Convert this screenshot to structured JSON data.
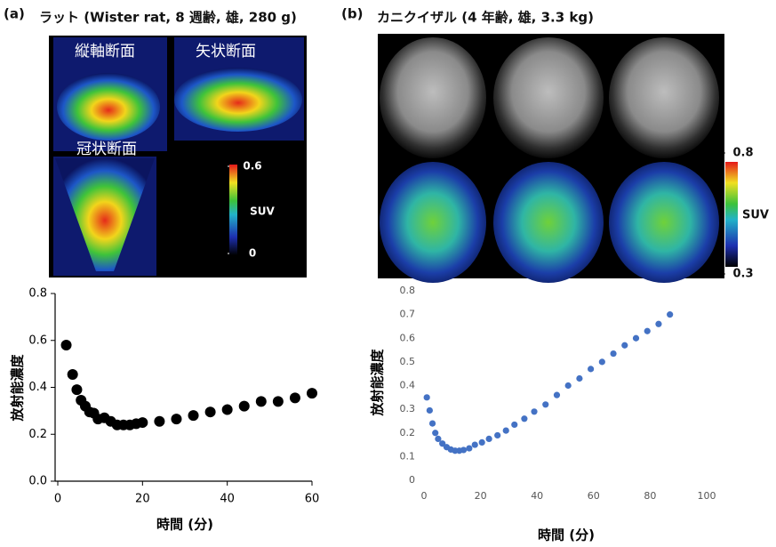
{
  "panels": [
    {
      "label": "(a)",
      "title": "ラット (Wister rat, 8 週齢, 雄, 280 g)",
      "views": [
        "縦軸断面",
        "矢状断面",
        "冠状断面"
      ],
      "colorbar": {
        "label": "SUV",
        "ticks": [
          0.6,
          0
        ]
      }
    },
    {
      "label": "(b)",
      "title": "カニクイザル (4 年齢, 雄, 3.3 kg)",
      "colorbar": {
        "label": "SUV",
        "ticks": [
          0.8,
          0.3
        ]
      }
    }
  ],
  "chart_data": [
    {
      "type": "scatter",
      "x_label": "時間 (分)",
      "y_label": "放射能濃度",
      "x": [
        2,
        3.5,
        4.5,
        5.5,
        6.5,
        7.5,
        8.5,
        9.5,
        11,
        12.5,
        14,
        15.5,
        17,
        18.5,
        20,
        24,
        28,
        32,
        36,
        40,
        44,
        48,
        52,
        56,
        60
      ],
      "values": [
        0.58,
        0.455,
        0.39,
        0.345,
        0.32,
        0.295,
        0.29,
        0.265,
        0.27,
        0.255,
        0.24,
        0.24,
        0.24,
        0.245,
        0.25,
        0.255,
        0.265,
        0.28,
        0.295,
        0.305,
        0.32,
        0.34,
        0.34,
        0.355,
        0.375
      ],
      "color": "#000000",
      "xlim": [
        0,
        60
      ],
      "xticks": [
        0,
        20,
        40,
        60
      ],
      "ylim": [
        0,
        0.8
      ],
      "yticks": [
        {
          "value": 0,
          "label": "0.0"
        },
        0.2,
        0.4,
        0.6,
        0.8
      ]
    },
    {
      "type": "scatter",
      "x_label": "時間 (分)",
      "y_label": "放射能濃度",
      "x": [
        1,
        2,
        3,
        4,
        5,
        6.5,
        8,
        9.5,
        11,
        12.5,
        14,
        16,
        18,
        20.5,
        23,
        26,
        29,
        32,
        35.5,
        39,
        43,
        47,
        51,
        55,
        59,
        63,
        67,
        71,
        75,
        79,
        83,
        87
      ],
      "values": [
        0.35,
        0.295,
        0.24,
        0.2,
        0.175,
        0.155,
        0.14,
        0.13,
        0.125,
        0.125,
        0.128,
        0.135,
        0.15,
        0.16,
        0.175,
        0.19,
        0.21,
        0.235,
        0.26,
        0.29,
        0.32,
        0.36,
        0.4,
        0.43,
        0.47,
        0.5,
        0.535,
        0.57,
        0.6,
        0.63,
        0.66,
        0.7
      ],
      "color": "#4472c4",
      "xlim": [
        0,
        100
      ],
      "xticks": [
        0,
        20,
        40,
        60,
        80,
        100
      ],
      "ylim": [
        0,
        0.8
      ],
      "yticks": [
        0,
        0.1,
        0.2,
        0.3,
        0.4,
        0.5,
        0.6,
        0.7,
        0.8
      ]
    }
  ]
}
